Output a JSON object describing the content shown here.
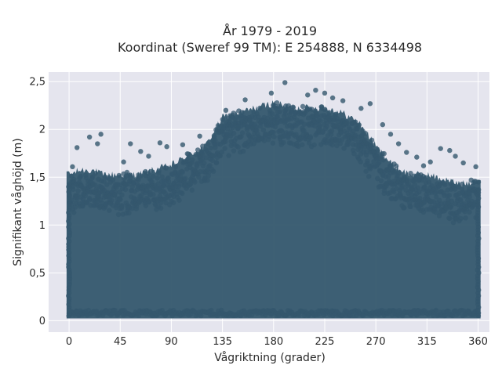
{
  "chart_data": {
    "type": "scatter",
    "title_lines": [
      "År 1979 - 2019",
      "Koordinat (Sweref 99 TM): E 254888, N 6334498"
    ],
    "xlabel": "Vågriktning (grader)",
    "ylabel": "Signifikant våghöjd (m)",
    "xlim": [
      -18,
      370
    ],
    "ylim": [
      -0.12,
      2.6
    ],
    "x_ticks": [
      0,
      45,
      90,
      135,
      180,
      225,
      270,
      315,
      360
    ],
    "x_tick_labels": [
      "0",
      "45",
      "90",
      "135",
      "180",
      "225",
      "270",
      "315",
      "360"
    ],
    "y_ticks": [
      0,
      0.5,
      1,
      1.5,
      2,
      2.5
    ],
    "y_tick_labels": [
      "0",
      "0,5",
      "1",
      "1,5",
      "2",
      "2,5"
    ],
    "grid": true,
    "marker_color": "#34576d",
    "plot_background": "#e5e5ee",
    "density_envelope": {
      "direction": [
        0,
        10,
        20,
        30,
        45,
        60,
        75,
        90,
        105,
        120,
        135,
        150,
        165,
        180,
        195,
        210,
        225,
        240,
        255,
        270,
        285,
        300,
        315,
        330,
        345,
        360
      ],
      "max_height": [
        1.5,
        1.55,
        1.55,
        1.5,
        1.5,
        1.5,
        1.55,
        1.6,
        1.7,
        1.8,
        2.1,
        2.15,
        2.2,
        2.25,
        2.2,
        2.2,
        2.2,
        2.15,
        2.05,
        1.8,
        1.6,
        1.5,
        1.5,
        1.45,
        1.4,
        1.45
      ],
      "min_height": 0.05
    },
    "outliers": [
      {
        "x": 190,
        "y": 2.49
      },
      {
        "x": 217,
        "y": 2.41
      },
      {
        "x": 225,
        "y": 2.38
      },
      {
        "x": 178,
        "y": 2.38
      },
      {
        "x": 210,
        "y": 2.36
      },
      {
        "x": 232,
        "y": 2.33
      },
      {
        "x": 241,
        "y": 2.3
      },
      {
        "x": 155,
        "y": 2.31
      },
      {
        "x": 265,
        "y": 2.27
      },
      {
        "x": 257,
        "y": 2.22
      },
      {
        "x": 138,
        "y": 2.2
      },
      {
        "x": 283,
        "y": 1.95
      },
      {
        "x": 276,
        "y": 2.05
      },
      {
        "x": 28,
        "y": 1.95
      },
      {
        "x": 7,
        "y": 1.81
      },
      {
        "x": 18,
        "y": 1.92
      },
      {
        "x": 25,
        "y": 1.85
      },
      {
        "x": 3,
        "y": 1.61
      },
      {
        "x": 54,
        "y": 1.85
      },
      {
        "x": 63,
        "y": 1.77
      },
      {
        "x": 80,
        "y": 1.86
      },
      {
        "x": 86,
        "y": 1.82
      },
      {
        "x": 48,
        "y": 1.66
      },
      {
        "x": 70,
        "y": 1.72
      },
      {
        "x": 100,
        "y": 1.84
      },
      {
        "x": 115,
        "y": 1.93
      },
      {
        "x": 297,
        "y": 1.76
      },
      {
        "x": 306,
        "y": 1.71
      },
      {
        "x": 318,
        "y": 1.66
      },
      {
        "x": 327,
        "y": 1.8
      },
      {
        "x": 340,
        "y": 1.72
      },
      {
        "x": 347,
        "y": 1.65
      },
      {
        "x": 358,
        "y": 1.61
      },
      {
        "x": 335,
        "y": 1.78
      },
      {
        "x": 290,
        "y": 1.85
      },
      {
        "x": 312,
        "y": 1.62
      }
    ]
  }
}
